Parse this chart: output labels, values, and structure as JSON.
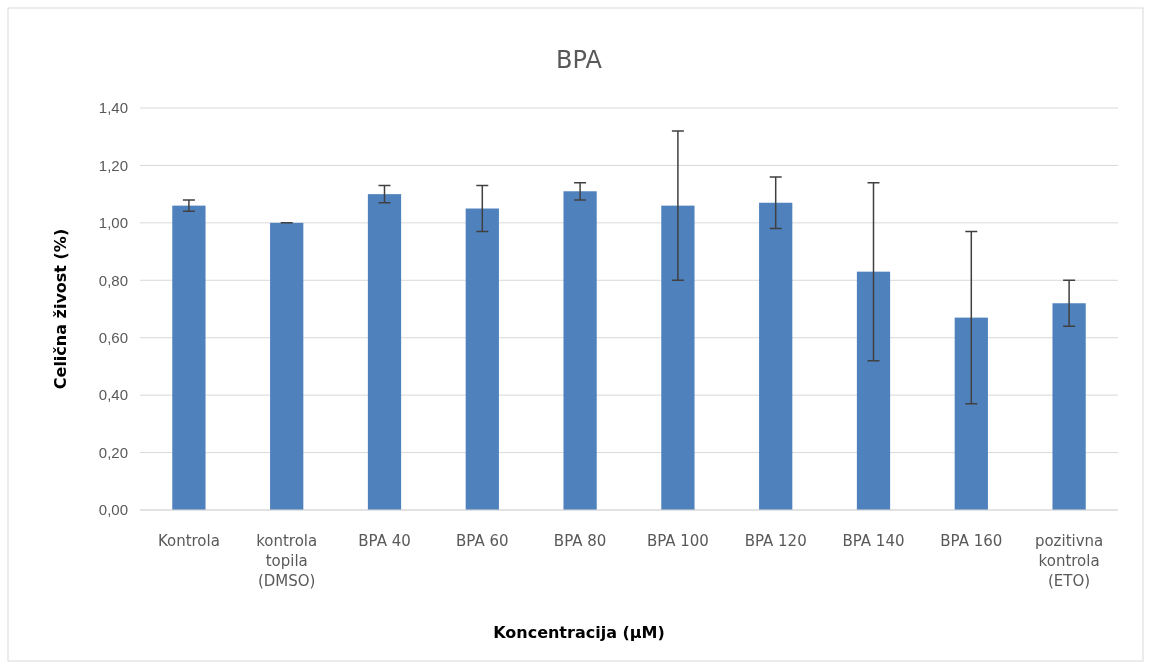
{
  "chart_data": {
    "type": "bar",
    "title": "BPA",
    "xlabel": "Koncentracija (μM)",
    "ylabel": "Celična živost (%)",
    "categories": [
      "Kontrola",
      "kontrola topila (DMSO)",
      "BPA 40",
      "BPA 60",
      "BPA 80",
      "BPA 100",
      "BPA 120",
      "BPA 140",
      "BPA 160",
      "pozitivna kontrola (ETO)"
    ],
    "values": [
      1.06,
      1.0,
      1.1,
      1.05,
      1.11,
      1.06,
      1.07,
      0.83,
      0.67,
      0.72
    ],
    "errors": [
      0.02,
      0,
      0.03,
      0.08,
      0.03,
      0.26,
      0.09,
      0.31,
      0.3,
      0.08
    ],
    "color": "#4f81bd",
    "ylim": [
      0,
      1.4
    ],
    "yticks": [
      {
        "value": 0,
        "label": "0,00"
      },
      {
        "value": 0.2,
        "label": "0,20"
      },
      {
        "value": 0.4,
        "label": "0,40"
      },
      {
        "value": 0.6,
        "label": "0,60"
      },
      {
        "value": 0.8,
        "label": "0,80"
      },
      {
        "value": 1.0,
        "label": "1,00"
      },
      {
        "value": 1.2,
        "label": "1,20"
      },
      {
        "value": 1.4,
        "label": "1,40"
      }
    ],
    "grid": "y"
  }
}
